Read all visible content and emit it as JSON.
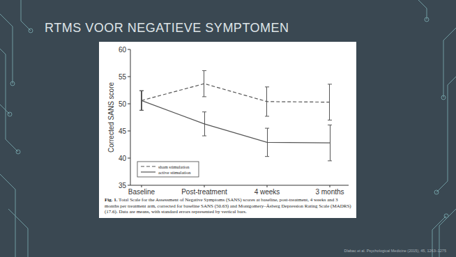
{
  "slide": {
    "title": "RTMS VOOR NEGATIEVE SYMPTOMEN",
    "citation": "Dlabac et al. Psychological Medicine (2015), 45, 1263–1275"
  },
  "chart_data": {
    "type": "line",
    "ylabel": "Corrected SANS score",
    "categories": [
      "Baseline",
      "Post-treatment",
      "4 weeks",
      "3 months"
    ],
    "series": [
      {
        "name": "sham stimulation",
        "color": "#555555",
        "line_style": "dashed",
        "marker": "none",
        "values": [
          50.6,
          53.7,
          50.4,
          50.3
        ],
        "error": [
          1.8,
          2.4,
          2.7,
          3.3
        ]
      },
      {
        "name": "active stimulation",
        "color": "#555555",
        "line_style": "solid",
        "marker": "none",
        "values": [
          50.6,
          46.3,
          42.9,
          42.8
        ],
        "error": [
          1.8,
          2.2,
          2.6,
          3.3
        ]
      }
    ],
    "ylim": [
      35,
      60
    ],
    "yticks": [
      35,
      40,
      45,
      50,
      55,
      60
    ],
    "legend": "lower left",
    "caption_label": "Fig. 1.",
    "caption": "Total Scale for the Assessment of Negative Symptoms (SANS) scores at baseline, post-treatment, 4 weeks and 3 months per treatment arm, corrected for baseline SANS (50.63) and Montgomery–Åsberg Depression Rating Scale (MADRS) (17.6). Data are means, with standard errors represented by vertical bars."
  }
}
